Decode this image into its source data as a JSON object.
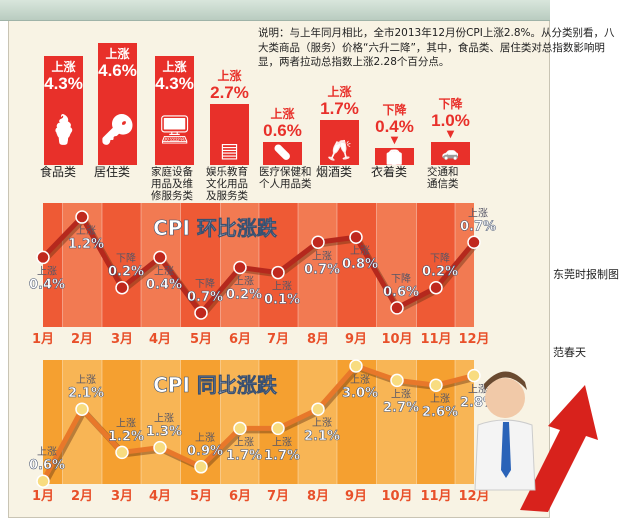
{
  "note": "说明：与上年同月相比，全市2013年12月份CPI上涨2.8%。从分类别看，八大类商品（服务）价格“六升二降”，其中，食品类、居住类对总指数影响明显，两者拉动总指数上涨2.28个百分点。",
  "credits": {
    "maker": "东莞时报制图",
    "author": "范春天"
  },
  "colors": {
    "red": "#e8302a",
    "mom_band_a": "#ee5a35",
    "mom_band_b": "#f27a52",
    "yoy_band_a": "#f5a030",
    "yoy_band_b": "#f8b555",
    "month_label": "#e8502a"
  },
  "chart_data": [
    {
      "type": "bar",
      "title": "",
      "categories": [
        "食品类",
        "居住类",
        "家庭设备用品及维修服务类",
        "娱乐教育文化用品及服务类",
        "医疗保健和个人用品类",
        "烟酒类",
        "衣着类",
        "交通和通信类"
      ],
      "directions": [
        "上涨",
        "上涨",
        "上涨",
        "上涨",
        "上涨",
        "上涨",
        "下降",
        "下降"
      ],
      "labels": [
        "4.3%",
        "4.6%",
        "4.3%",
        "2.7%",
        "0.6%",
        "1.7%",
        "0.4%",
        "1.0%"
      ],
      "values": [
        4.3,
        4.6,
        4.3,
        2.7,
        0.6,
        1.7,
        -0.4,
        -1.0
      ],
      "icons": [
        "ice-cream-icon",
        "keys-icon",
        "monitor-icon",
        "book-icon",
        "pill-icon",
        "wine-glasses-icon",
        "shirt-icon",
        "car-icon"
      ]
    },
    {
      "type": "line",
      "title": "CPI 环比涨跌",
      "categories": [
        "1月",
        "2月",
        "3月",
        "4月",
        "5月",
        "6月",
        "7月",
        "8月",
        "9月",
        "10月",
        "11月",
        "12月"
      ],
      "values": [
        0.4,
        1.2,
        -0.2,
        0.4,
        -0.7,
        0.2,
        0.1,
        0.7,
        0.8,
        -0.6,
        -0.2,
        0.7
      ],
      "directions": [
        "上涨",
        "上涨",
        "下降",
        "上涨",
        "下降",
        "上涨",
        "上涨",
        "上涨",
        "上涨",
        "下降",
        "下降",
        "上涨"
      ],
      "labels": [
        "0.4%",
        "1.2%",
        "0.2%",
        "0.4%",
        "0.7%",
        "0.2%",
        "0.1%",
        "0.7%",
        "0.8%",
        "0.6%",
        "0.2%",
        "0.7%"
      ]
    },
    {
      "type": "line",
      "title": "CPI 同比涨跌",
      "categories": [
        "1月",
        "2月",
        "3月",
        "4月",
        "5月",
        "6月",
        "7月",
        "8月",
        "9月",
        "10月",
        "11月",
        "12月"
      ],
      "values": [
        0.6,
        2.1,
        1.2,
        1.3,
        0.9,
        1.7,
        1.7,
        2.1,
        3.0,
        2.7,
        2.6,
        2.8
      ],
      "directions": [
        "上涨",
        "上涨",
        "上涨",
        "上涨",
        "上涨",
        "上涨",
        "上涨",
        "上涨",
        "上涨",
        "上涨",
        "上涨",
        "上涨"
      ],
      "labels": [
        "0.6%",
        "2.1%",
        "1.2%",
        "1.3%",
        "0.9%",
        "1.7%",
        "1.7%",
        "2.1%",
        "3.0%",
        "2.7%",
        "2.6%",
        "2.8%"
      ]
    }
  ]
}
